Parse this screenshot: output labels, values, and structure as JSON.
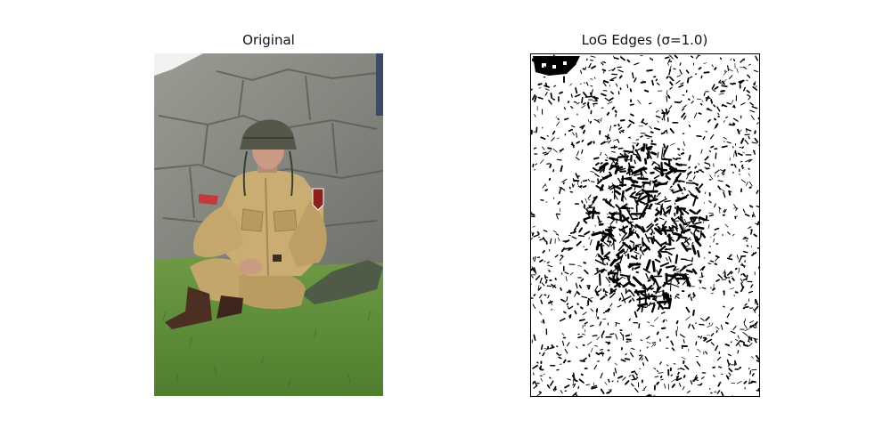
{
  "panels": {
    "left": {
      "title": "Original"
    },
    "right": {
      "title": "LoG Edges (σ=1.0)"
    }
  },
  "colors": {
    "sky": "#f2f2f0",
    "stone": "#8e9088",
    "stone_dark": "#5f625c",
    "grass": "#5f8f3a",
    "grass_dark": "#3f6a24",
    "uniform": "#c9ad73",
    "uniform_shadow": "#a48856",
    "helmet": "#55574a",
    "boots": "#4a2f22",
    "skin": "#c99a84",
    "tarp": "#4f5a47",
    "edge_ink": "#000000"
  },
  "icons": {
    "photo": "photo-of-seated-soldier",
    "edges": "log-edge-map"
  }
}
